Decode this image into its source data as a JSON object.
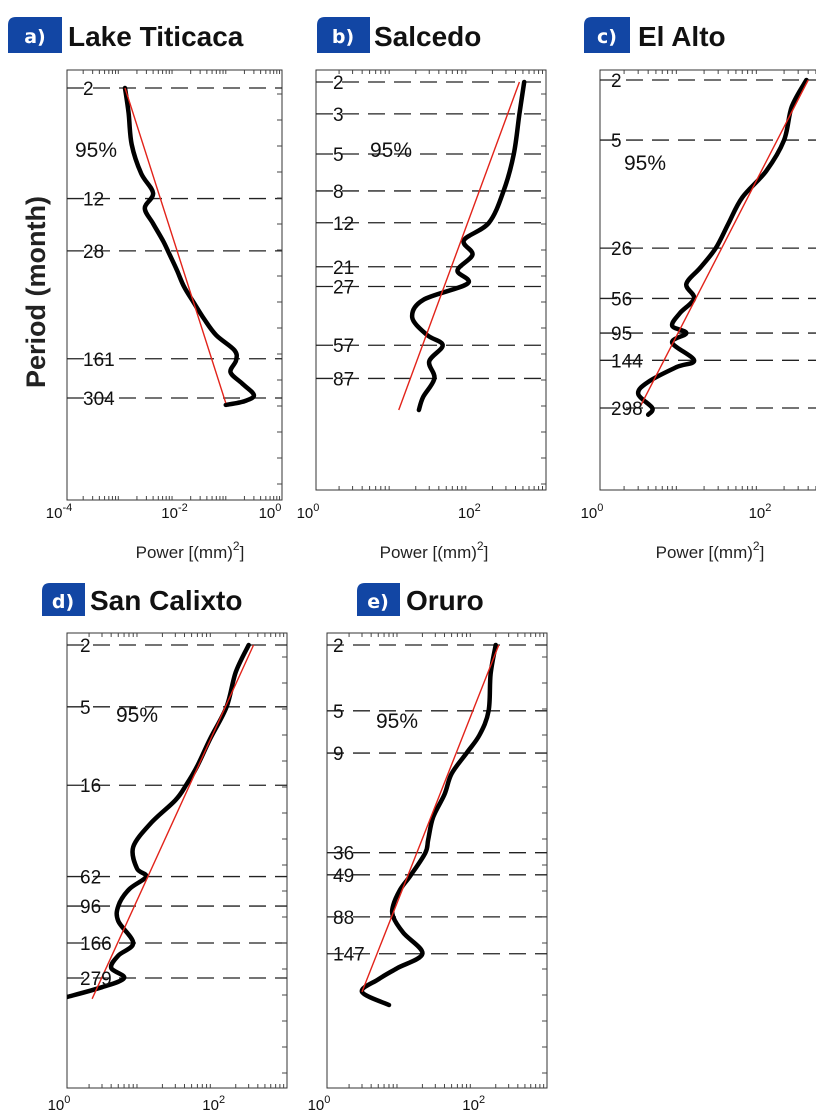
{
  "y_axis_label": "Period (month)",
  "chart_data": [
    {
      "type": "line",
      "panel_letter": "a)",
      "title": "Lake Titicaca",
      "xlabel": "Power [(mm)",
      "xlabel_sup": "2",
      "xscale": "log",
      "yscale": "log",
      "xlim": [
        0.0001,
        1
      ],
      "x_ticks": [
        {
          "base": "10",
          "exp": "-4"
        },
        {
          "base": "10",
          "exp": "-2"
        },
        {
          "base": "10",
          "exp": "0"
        }
      ],
      "confidence_label": "95%",
      "period_lines": [
        "2",
        "12",
        "28",
        "161",
        "304"
      ],
      "spectrum": {
        "period": [
          2,
          3,
          5,
          8,
          11,
          14,
          18,
          24,
          30,
          38,
          50,
          65,
          85,
          110,
          140,
          165,
          200,
          240,
          290,
          320,
          340
        ],
        "power": [
          0.0012,
          0.0014,
          0.0016,
          0.0024,
          0.004,
          0.0028,
          0.004,
          0.0062,
          0.0082,
          0.011,
          0.015,
          0.023,
          0.036,
          0.06,
          0.13,
          0.14,
          0.11,
          0.18,
          0.3,
          0.2,
          0.09
        ]
      },
      "fit": {
        "period": [
          2,
          330
        ],
        "power": [
          0.0012,
          0.09
        ]
      }
    },
    {
      "type": "line",
      "panel_letter": "b)",
      "title": "Salcedo",
      "xlabel": "Power [(mm)",
      "xlabel_sup": "2",
      "xscale": "log",
      "yscale": "log",
      "xlim": [
        1,
        1000
      ],
      "x_ticks": [
        {
          "base": "10",
          "exp": "0"
        },
        {
          "base": "10",
          "exp": "2"
        }
      ],
      "confidence_label": "95%",
      "period_lines": [
        "2",
        "3",
        "5",
        "8",
        "12",
        "21",
        "27",
        "57",
        "87"
      ],
      "spectrum": {
        "period": [
          2,
          3,
          5,
          8,
          12,
          15,
          18,
          22,
          26,
          32,
          40,
          50,
          57,
          70,
          87,
          110,
          130
        ],
        "power": [
          520,
          450,
          380,
          280,
          180,
          85,
          110,
          70,
          95,
          25,
          18,
          28,
          45,
          30,
          35,
          25,
          22
        ]
      },
      "fit": {
        "period": [
          2,
          130
        ],
        "power": [
          450,
          12
        ]
      }
    },
    {
      "type": "line",
      "panel_letter": "c)",
      "title": "El Alto",
      "xlabel": "Power [(mm)",
      "xlabel_sup": "2",
      "xscale": "log",
      "yscale": "log",
      "xlim": [
        1,
        1000
      ],
      "x_ticks": [
        {
          "base": "10",
          "exp": "0"
        },
        {
          "base": "10",
          "exp": "2"
        }
      ],
      "confidence_label": "95%",
      "period_lines": [
        "2",
        "5",
        "26",
        "56",
        "95",
        "144",
        "298"
      ],
      "spectrum": {
        "period": [
          2,
          3,
          5,
          8,
          12,
          18,
          26,
          35,
          45,
          56,
          70,
          85,
          95,
          110,
          144,
          160,
          200,
          240,
          298,
          330
        ],
        "power": [
          380,
          250,
          200,
          120,
          60,
          40,
          28,
          18,
          12,
          15,
          10,
          8,
          12,
          8,
          15,
          9,
          4,
          3,
          4.5,
          4
        ]
      },
      "fit": {
        "period": [
          2,
          290
        ],
        "power": [
          400,
          3.2
        ]
      }
    },
    {
      "type": "line",
      "panel_letter": "d)",
      "title": "San Calixto",
      "xlabel": "",
      "xlabel_sup": "",
      "xscale": "log",
      "yscale": "log",
      "xlim": [
        1,
        1000
      ],
      "x_ticks": [
        {
          "base": "10",
          "exp": "0"
        },
        {
          "base": "10",
          "exp": "2"
        }
      ],
      "confidence_label": "95%",
      "period_lines": [
        "2",
        "5",
        "16",
        "62",
        "96",
        "166",
        "279"
      ],
      "spectrum": {
        "period": [
          2,
          3,
          5,
          8,
          12,
          16,
          20,
          28,
          40,
          55,
          62,
          75,
          96,
          120,
          166,
          200,
          240,
          279,
          320,
          370
        ],
        "power": [
          300,
          200,
          150,
          90,
          60,
          42,
          30,
          14,
          8,
          9,
          12,
          7,
          5,
          5,
          8,
          5,
          4,
          6,
          3,
          1
        ]
      },
      "fit": {
        "period": [
          2,
          380
        ],
        "power": [
          350,
          2.2
        ]
      }
    },
    {
      "type": "line",
      "panel_letter": "e)",
      "title": "Oruro",
      "xlabel": "",
      "xlabel_sup": "",
      "xscale": "log",
      "yscale": "log",
      "xlim": [
        1,
        1000
      ],
      "x_ticks": [
        {
          "base": "10",
          "exp": "0"
        },
        {
          "base": "10",
          "exp": "2"
        }
      ],
      "confidence_label": "95%",
      "period_lines": [
        "2",
        "5",
        "9",
        "36",
        "49",
        "88",
        "147"
      ],
      "spectrum": {
        "period": [
          2,
          3,
          5,
          7,
          9,
          12,
          16,
          22,
          30,
          36,
          49,
          60,
          75,
          88,
          110,
          147,
          180,
          210,
          250,
          300
        ],
        "power": [
          200,
          170,
          160,
          120,
          80,
          50,
          40,
          28,
          24,
          22,
          14,
          10,
          8,
          8,
          11,
          20,
          9,
          5,
          3,
          7
        ]
      },
      "fit": {
        "period": [
          2,
          250
        ],
        "power": [
          220,
          3
        ]
      }
    }
  ]
}
